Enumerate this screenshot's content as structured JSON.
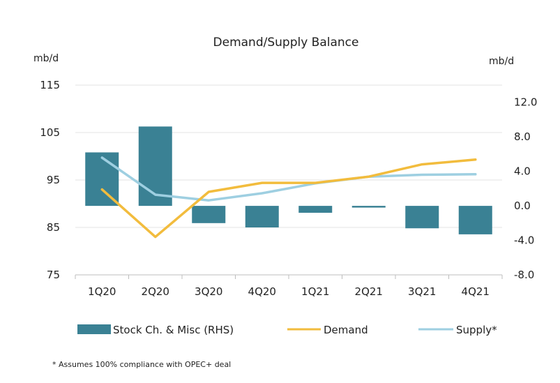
{
  "chart_data": {
    "type": "bar",
    "title": "Demand/Supply Balance",
    "left_unit": "mb/d",
    "right_unit": "mb/d",
    "categories": [
      "1Q20",
      "2Q20",
      "3Q20",
      "4Q20",
      "1Q21",
      "2Q21",
      "3Q21",
      "4Q21"
    ],
    "left_axis": {
      "ylim": [
        75,
        115
      ],
      "ticks": [
        "115",
        "105",
        "95",
        "85",
        "75"
      ],
      "tick_values": [
        115,
        105,
        95,
        85,
        75
      ]
    },
    "right_axis": {
      "ylim": [
        -8,
        14
      ],
      "ticks": [
        "12.0",
        "8.0",
        "4.0",
        "0.0",
        "-4.0",
        "-8.0"
      ],
      "tick_values": [
        12,
        8,
        4,
        0,
        -4,
        -8
      ]
    },
    "series": [
      {
        "name": "Stock Ch. & Misc (RHS)",
        "type": "bar",
        "axis": "right",
        "color": "#3a8194",
        "values": [
          6.2,
          9.2,
          -2.0,
          -2.5,
          -0.8,
          -0.2,
          -2.6,
          -3.3
        ]
      },
      {
        "name": "Demand",
        "type": "line",
        "axis": "left",
        "color": "#f2bc3d",
        "values": [
          93.0,
          83.0,
          92.5,
          94.4,
          94.4,
          95.7,
          98.3,
          99.3
        ]
      },
      {
        "name": "Supply*",
        "type": "line",
        "axis": "left",
        "color": "#9ecfe1",
        "values": [
          99.7,
          91.9,
          90.7,
          92.2,
          94.3,
          95.7,
          96.1,
          96.2
        ]
      }
    ],
    "grid": true,
    "legend_position": "bottom",
    "footnote": "* Assumes 100% compliance with OPEC+ deal"
  }
}
